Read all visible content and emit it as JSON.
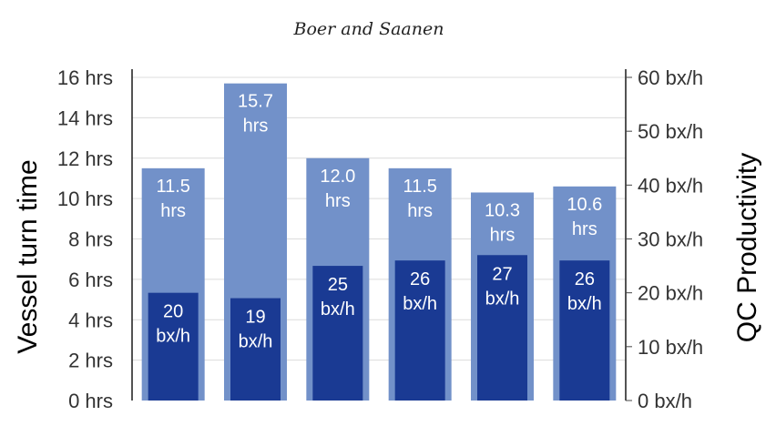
{
  "chart_data": {
    "type": "bar",
    "title": "Boer and Saanen",
    "categories": [
      "",
      "",
      "",
      "",
      "",
      ""
    ],
    "series": [
      {
        "name": "Vessel turn time",
        "axis": "left",
        "color": "#7291c9",
        "values": [
          11.5,
          15.7,
          12.0,
          11.5,
          10.3,
          10.6
        ],
        "labels": [
          [
            "11.5",
            "hrs"
          ],
          [
            "15.7",
            "hrs"
          ],
          [
            "12.0",
            "hrs"
          ],
          [
            "11.5",
            "hrs"
          ],
          [
            "10.3",
            "hrs"
          ],
          [
            "10.6",
            "hrs"
          ]
        ]
      },
      {
        "name": "QC Productivity",
        "axis": "right",
        "color": "#1a3a93",
        "values": [
          20,
          19,
          25,
          26,
          27,
          26
        ],
        "labels": [
          [
            "20",
            "bx/h"
          ],
          [
            "19",
            "bx/h"
          ],
          [
            "25",
            "bx/h"
          ],
          [
            "26",
            "bx/h"
          ],
          [
            "27",
            "bx/h"
          ],
          [
            "26",
            "bx/h"
          ]
        ]
      }
    ],
    "ylabel_left": "Vessel turn time",
    "ylabel_right": "QC Productivity",
    "ylim_left": [
      0,
      16
    ],
    "ylim_right": [
      0,
      60
    ],
    "yticks_left": [
      "0 hrs",
      "2 hrs",
      "4 hrs",
      "6 hrs",
      "8 hrs",
      "10 hrs",
      "12 hrs",
      "14 hrs",
      "16 hrs"
    ],
    "yticks_right": [
      "0 bx/h",
      "10 bx/h",
      "20 bx/h",
      "30 bx/h",
      "40 bx/h",
      "50 bx/h",
      "60 bx/h"
    ],
    "grid": true
  }
}
